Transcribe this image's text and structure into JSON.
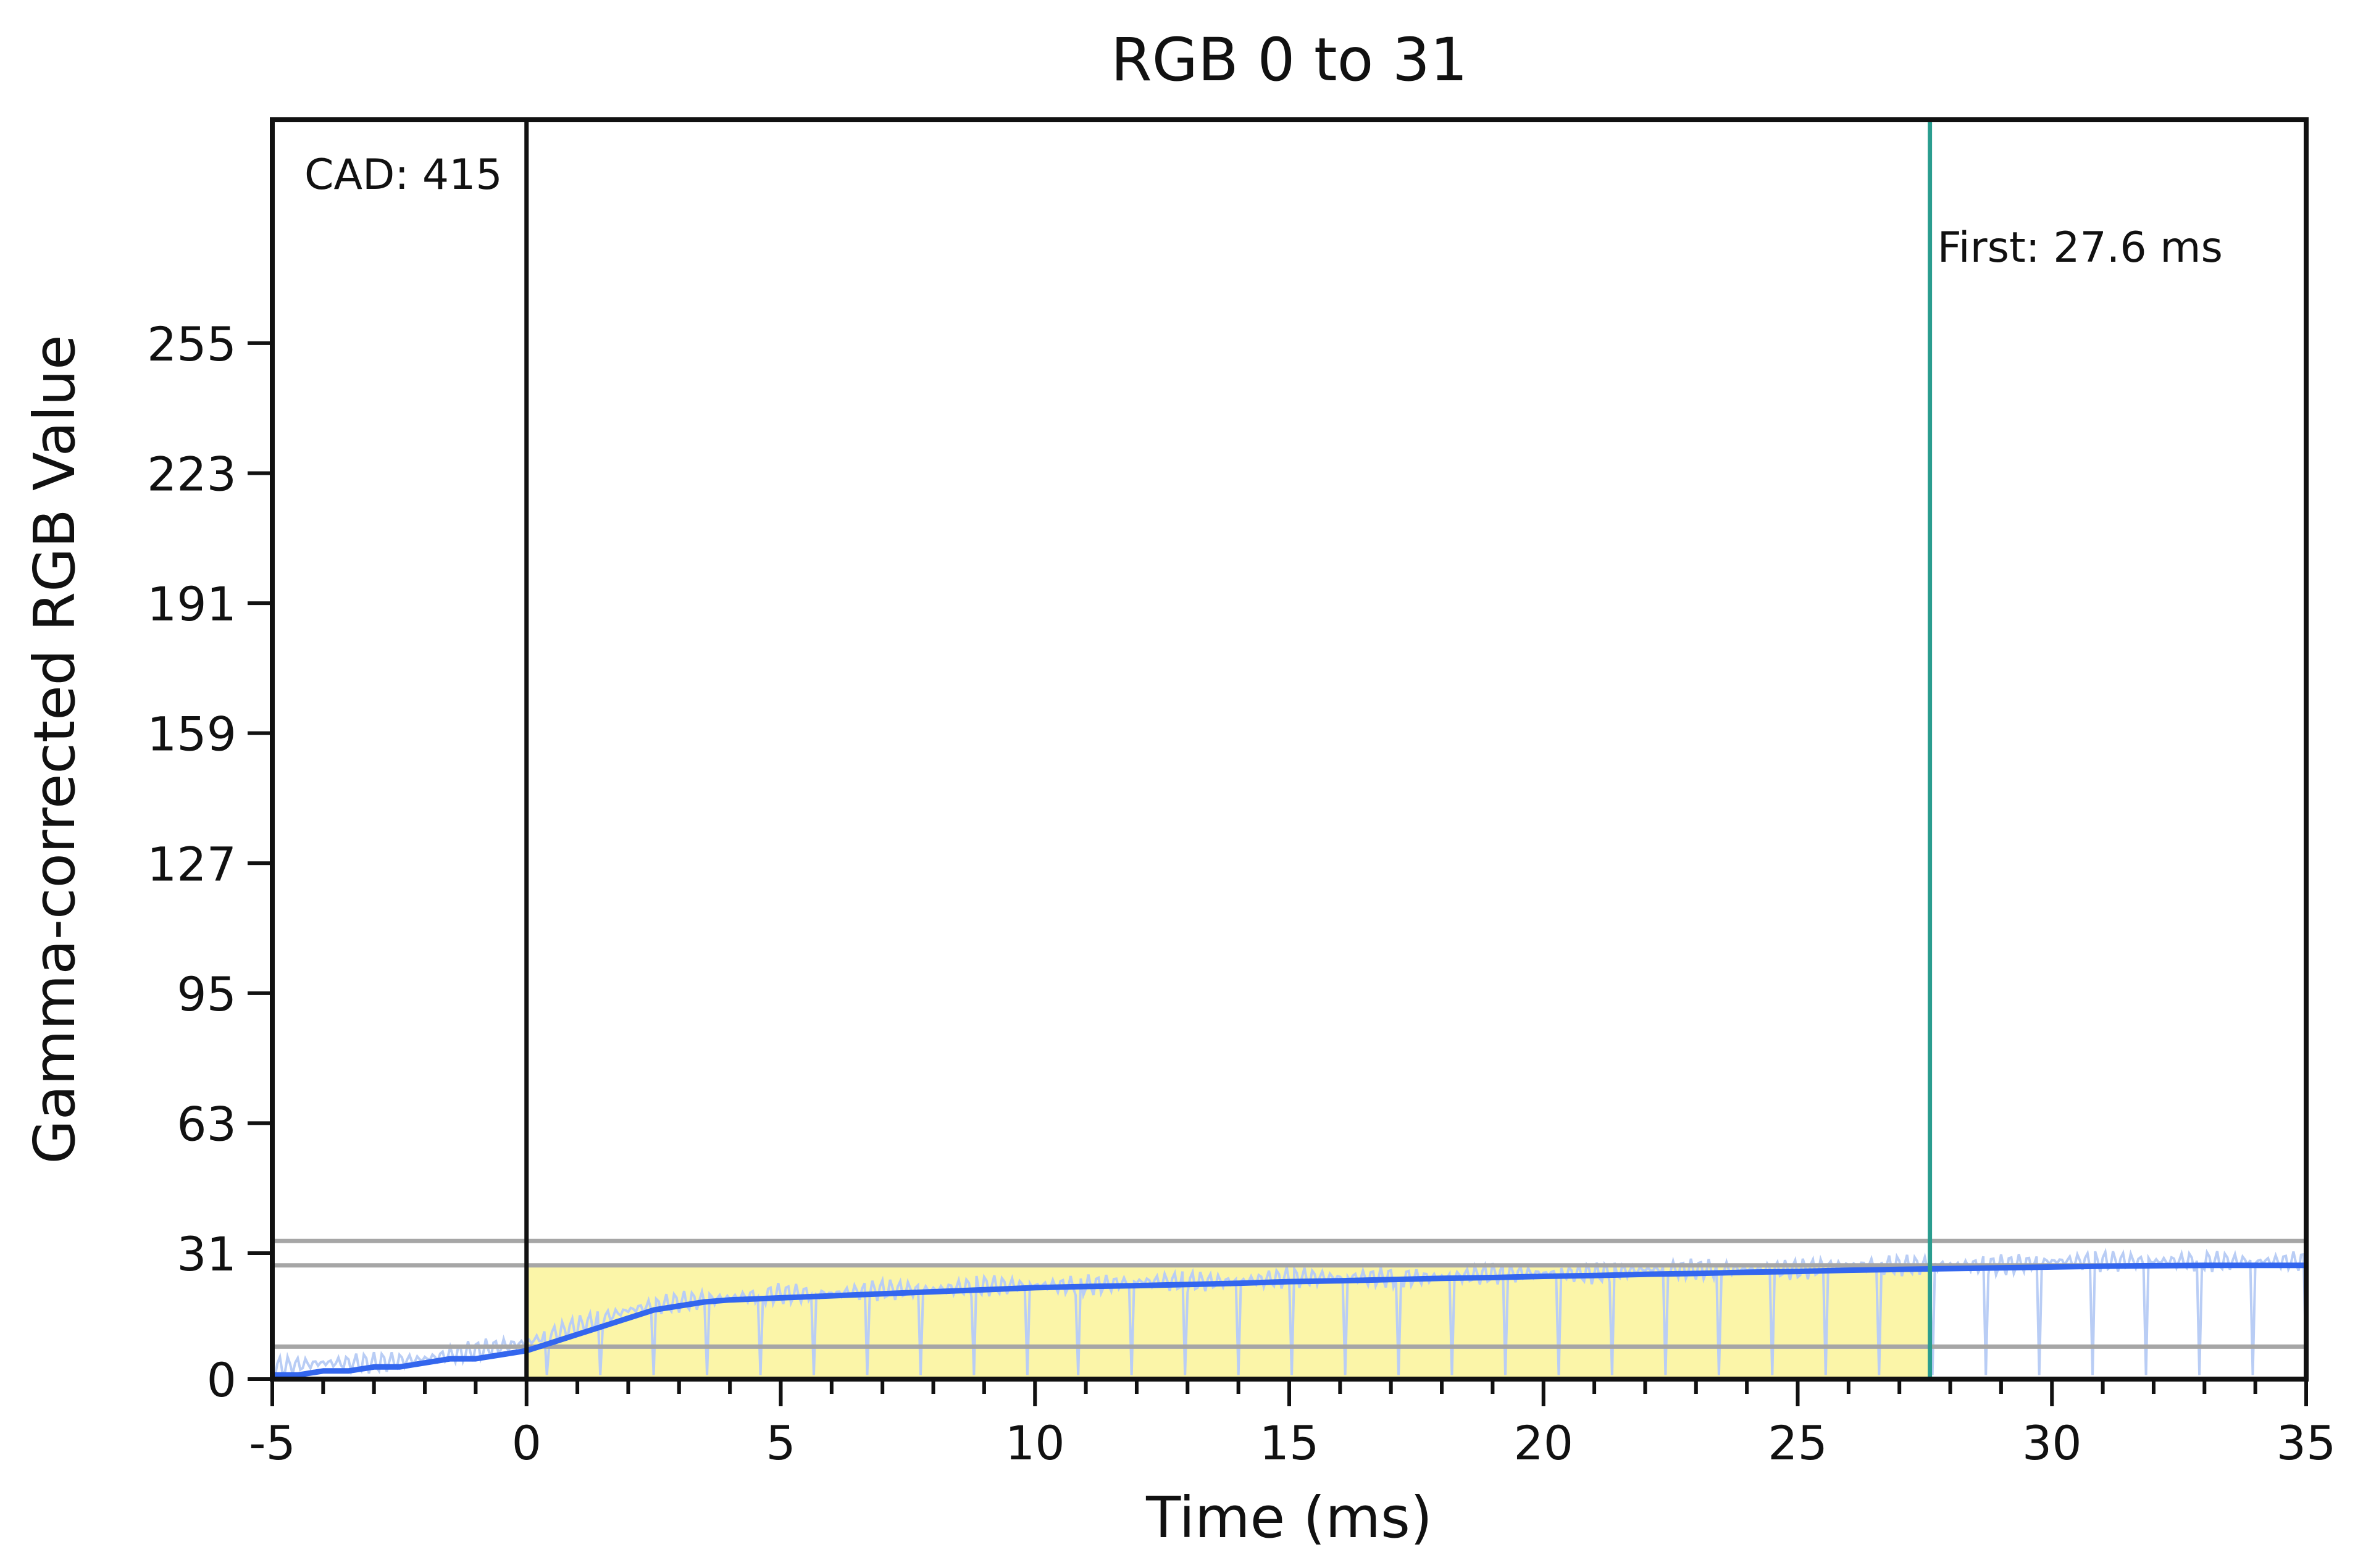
{
  "chart_data": {
    "type": "line",
    "title": "RGB 0 to 31",
    "xlabel": "Time (ms)",
    "ylabel": "Gamma-corrected RGB Value",
    "xlim": [
      -5,
      35
    ],
    "ylim": [
      0,
      310
    ],
    "x_ticks": [
      -5,
      0,
      5,
      10,
      15,
      20,
      25,
      30,
      35
    ],
    "x_tick_labels": [
      "-5",
      "0",
      "5",
      "10",
      "15",
      "20",
      "25",
      "30",
      "35"
    ],
    "y_ticks": [
      0,
      31,
      63,
      95,
      127,
      159,
      191,
      223,
      255
    ],
    "y_tick_labels": [
      "0",
      "31",
      "63",
      "95",
      "127",
      "159",
      "191",
      "223",
      "255"
    ],
    "grid": false,
    "colors": {
      "smoothed": "#3366ee",
      "raw": "#b9cdf5",
      "shade": "#fbf5a8",
      "reference": "#a6a6a6",
      "first_line": "#2a9d8f",
      "zero_line": "#111111"
    },
    "annotations": {
      "cad": "CAD: 415",
      "first": "First: 27.6 ms"
    },
    "vertical_lines": {
      "start_x": 0,
      "first_x": 27.6
    },
    "reference_levels": [
      34,
      28,
      8
    ],
    "shade_region": {
      "x_start": 0,
      "x_end": 27.6,
      "y_top": 28
    },
    "series": [
      {
        "name": "",
        "role": "smoothed",
        "x": [
          -5,
          -4.5,
          -4,
          -3.5,
          -3,
          -2.5,
          -2,
          -1.5,
          -1,
          -0.5,
          0,
          0.5,
          1,
          1.5,
          2,
          2.5,
          3,
          3.5,
          4,
          5,
          6,
          7,
          8,
          9,
          10,
          11,
          12,
          13,
          14,
          15,
          16,
          17,
          18,
          19,
          20,
          21,
          22,
          23,
          24,
          25,
          26,
          27,
          28,
          29,
          30,
          31,
          32,
          33,
          34,
          35
        ],
        "y": [
          1,
          1,
          2,
          2,
          3,
          3,
          4,
          5,
          5,
          6,
          7,
          9,
          11,
          13,
          15,
          17,
          18,
          19,
          19.5,
          20,
          20.5,
          21,
          21.5,
          22,
          22.5,
          22.8,
          23,
          23.3,
          23.6,
          24,
          24.2,
          24.5,
          24.8,
          25,
          25.3,
          25.5,
          25.8,
          26,
          26.3,
          26.5,
          26.8,
          27,
          27.2,
          27.4,
          27.6,
          27.8,
          27.9,
          28,
          28,
          28
        ]
      },
      {
        "name": "",
        "role": "raw",
        "x": [
          -5,
          -4,
          -3,
          -2,
          -1,
          0,
          1,
          2,
          3,
          4,
          5,
          6,
          7,
          8,
          9,
          10,
          11,
          12,
          13,
          14,
          15,
          16,
          17,
          18,
          19,
          20,
          21,
          22,
          23,
          24,
          25,
          26,
          27,
          28,
          29,
          30,
          31,
          32,
          33,
          34,
          35
        ],
        "y": [
          3,
          4,
          4,
          5,
          7,
          9,
          13,
          17,
          19,
          20,
          21,
          21,
          22,
          22,
          23,
          23,
          23,
          24,
          24,
          24,
          25,
          25,
          25,
          25,
          26,
          26,
          26,
          27,
          27,
          27,
          27,
          28,
          28,
          28,
          28,
          29,
          29,
          29,
          29,
          29,
          29
        ]
      }
    ]
  }
}
